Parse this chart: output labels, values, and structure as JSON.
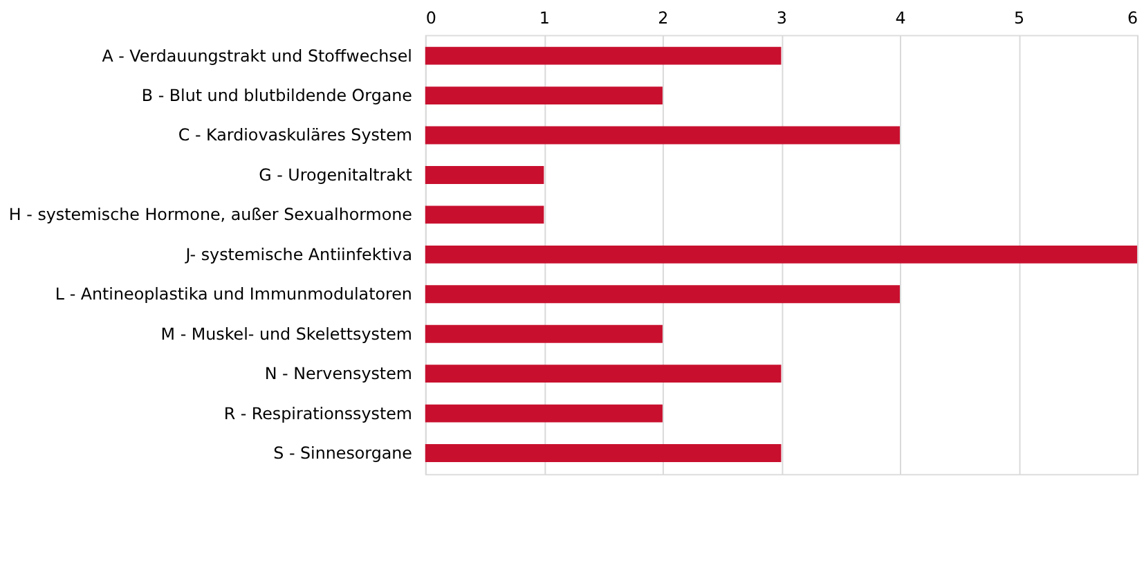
{
  "chart_data": {
    "type": "bar",
    "orientation": "horizontal",
    "categories": [
      "A - Verdauungstrakt und Stoffwechsel",
      "B - Blut und blutbildende Organe",
      "C - Kardiovaskuläres System",
      "G - Urogenitaltrakt",
      "H - systemische Hormone, außer Sexualhormone",
      "J- systemische Antiinfektiva",
      "L - Antineoplastika und Immunmodulatoren",
      "M - Muskel- und Skelettsystem",
      "N - Nervensystem",
      "R - Respirationssystem",
      "S - Sinnesorgane"
    ],
    "values": [
      3,
      2,
      4,
      1,
      1,
      6,
      4,
      2,
      3,
      2,
      3
    ],
    "color": "#c8102e",
    "xlim": [
      0,
      6
    ],
    "xticks": [
      0,
      1,
      2,
      3,
      4,
      5,
      6
    ],
    "grid": "x"
  }
}
